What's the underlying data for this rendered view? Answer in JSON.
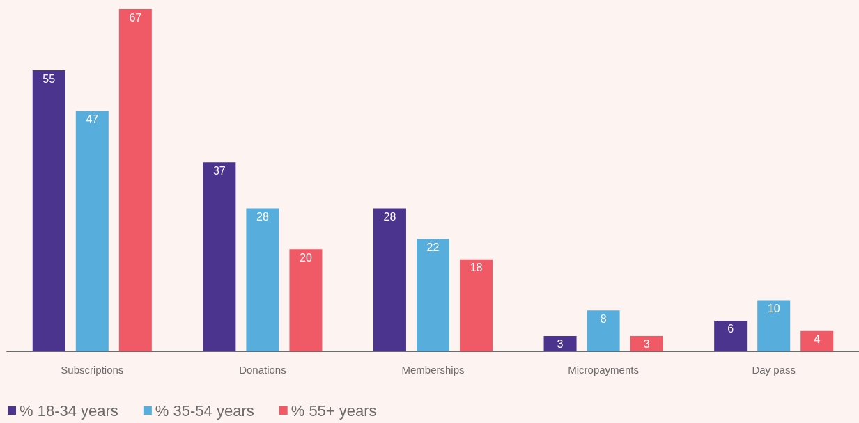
{
  "chart_data": {
    "type": "bar",
    "categories": [
      "Subscriptions",
      "Donations",
      "Memberships",
      "Micropayments",
      "Day pass"
    ],
    "series": [
      {
        "name": "% 18-34 years",
        "color": "#4a348e",
        "values": [
          55,
          37,
          28,
          3,
          6
        ]
      },
      {
        "name": "% 35-54 years",
        "color": "#57addb",
        "values": [
          47,
          28,
          22,
          8,
          10
        ]
      },
      {
        "name": "% 55+ years",
        "color": "#f05966",
        "values": [
          67,
          20,
          18,
          3,
          4
        ]
      }
    ],
    "data_labels": true,
    "legend": "bottom left"
  }
}
